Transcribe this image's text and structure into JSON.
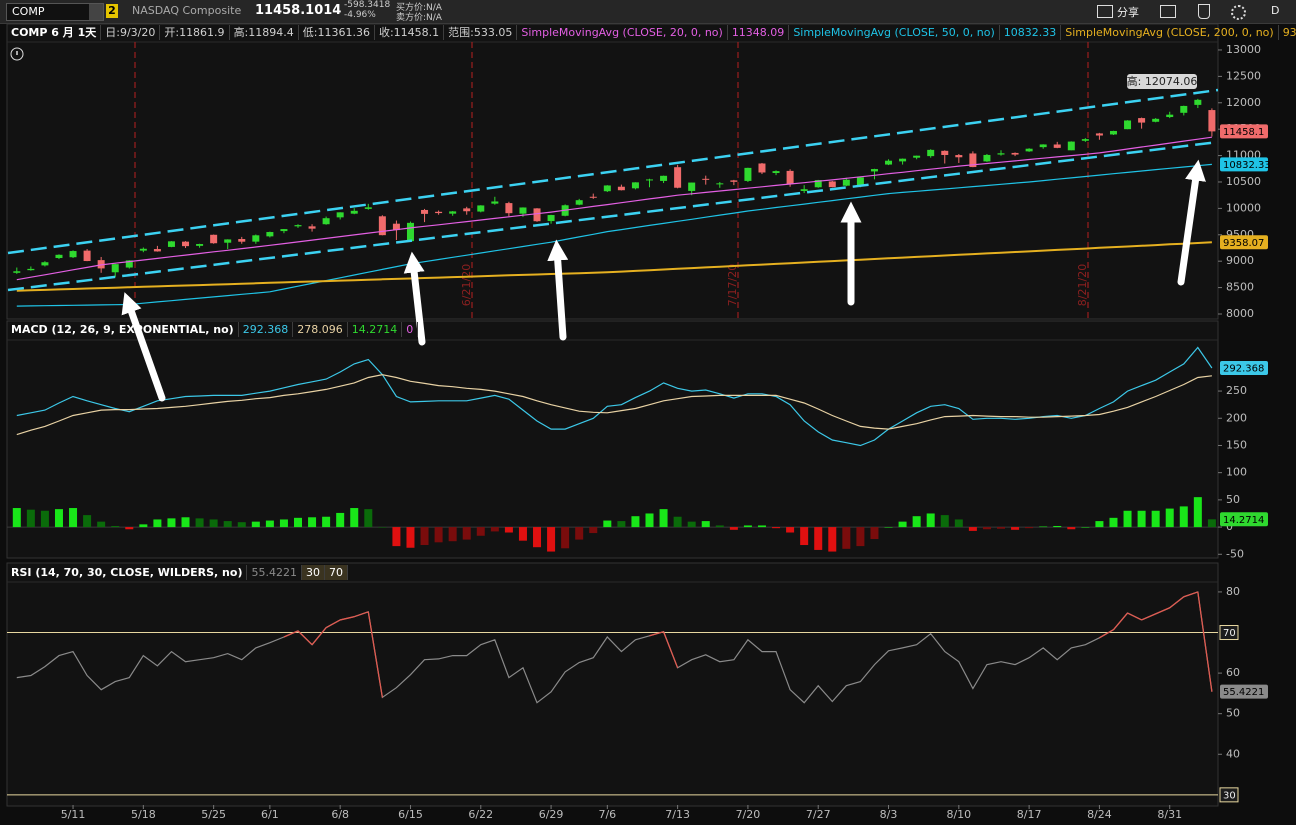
{
  "toolbar": {
    "symbol": "COMP",
    "link": "2",
    "name": "NASDAQ Composite",
    "last": "11458.1014",
    "change": "-598.3418",
    "change_pct": "-4.96%",
    "bid": "买方价:N/A",
    "ask": "卖方价:N/A",
    "share": "分享",
    "period": "D"
  },
  "chart_data": [
    {
      "type": "candlestick",
      "title": "COMP 6 月 1天",
      "info": [
        "日:9/3/20",
        "开:11861.9",
        "高:11894.4",
        "低:11361.36",
        "收:11458.1",
        "范围:533.05"
      ],
      "high_label": "高: 12074.06",
      "event_labels": [
        "6/21/20",
        "7/17/20",
        "8/21/20"
      ],
      "categories": [
        null,
        null,
        null,
        null,
        "5/11",
        null,
        null,
        null,
        null,
        "5/18",
        null,
        null,
        null,
        null,
        "5/25",
        null,
        null,
        null,
        "6/1",
        null,
        null,
        null,
        null,
        "6/8",
        null,
        null,
        null,
        null,
        "6/15",
        null,
        null,
        null,
        null,
        "6/22",
        null,
        null,
        null,
        null,
        "6/29",
        null,
        null,
        null,
        "7/6",
        null,
        null,
        null,
        null,
        "7/13",
        null,
        null,
        null,
        null,
        "7/20",
        null,
        null,
        null,
        null,
        "7/27",
        null,
        null,
        null,
        null,
        "8/3",
        null,
        null,
        null,
        null,
        "8/10",
        null,
        null,
        null,
        null,
        "8/17",
        null,
        null,
        null,
        null,
        "8/24",
        null,
        null,
        null,
        null,
        "8/31",
        null,
        null,
        null
      ],
      "open": [
        8780,
        8830,
        8920,
        9060,
        9075,
        9200,
        9020,
        8790,
        8880,
        9200,
        9230,
        9270,
        9370,
        9290,
        9500,
        9350,
        9420,
        9370,
        9470,
        9570,
        9660,
        9660,
        9700,
        9830,
        9900,
        9990,
        9850,
        9710,
        9380,
        9970,
        9935,
        9900,
        10000,
        9940,
        10090,
        10100,
        9900,
        10000,
        9760,
        9860,
        10070,
        10220,
        10325,
        10410,
        10380,
        10540,
        10520,
        10780,
        10330,
        10560,
        10470,
        10530,
        10520,
        10850,
        10670,
        10710,
        10330,
        10400,
        10510,
        10430,
        10430,
        10700,
        10830,
        10890,
        10960,
        10990,
        11090,
        11010,
        11040,
        10890,
        11020,
        11050,
        11080,
        11160,
        11210,
        11100,
        11280,
        11420,
        11400,
        11500,
        11710,
        11640,
        11730,
        11810,
        11960,
        11861.9
      ],
      "high": [
        8880,
        8900,
        9000,
        9130,
        9205,
        9230,
        9080,
        8950,
        9020,
        9260,
        9290,
        9380,
        9380,
        9330,
        9505,
        9415,
        9460,
        9505,
        9560,
        9610,
        9700,
        9700,
        9845,
        9927,
        10003,
        10086,
        9870,
        9770,
        9750,
        9990,
        9960,
        9950,
        10030,
        10060,
        10220,
        10125,
        10020,
        10005,
        9878,
        10075,
        10180,
        10280,
        10440,
        10450,
        10495,
        10560,
        10620,
        10825,
        10490,
        10620,
        10500,
        10540,
        10770,
        10860,
        10720,
        10740,
        10440,
        10540,
        10520,
        10580,
        10600,
        10750,
        10930,
        10945,
        11000,
        11120,
        11100,
        11030,
        11080,
        11030,
        11100,
        11060,
        11140,
        11215,
        11260,
        11270,
        11330,
        11430,
        11470,
        11670,
        11720,
        11710,
        11830,
        11945,
        12074.06,
        11894.4
      ],
      "low": [
        8760,
        8820,
        8900,
        9040,
        9060,
        9000,
        8780,
        8700,
        8860,
        9170,
        9180,
        9265,
        9250,
        9255,
        9330,
        9230,
        9330,
        9330,
        9450,
        9530,
        9630,
        9560,
        9690,
        9790,
        9890,
        9975,
        9490,
        9400,
        9370,
        9740,
        9880,
        9860,
        9880,
        9925,
        10070,
        9850,
        9840,
        9745,
        9710,
        9850,
        10060,
        10180,
        10310,
        10340,
        10360,
        10400,
        10480,
        10380,
        10250,
        10450,
        10390,
        10440,
        10500,
        10650,
        10630,
        10410,
        10290,
        10390,
        10400,
        10420,
        10400,
        10550,
        10820,
        10830,
        10930,
        10960,
        10850,
        10860,
        10780,
        10880,
        11000,
        10990,
        11070,
        11130,
        11140,
        11100,
        11260,
        11300,
        11390,
        11500,
        11510,
        11630,
        11710,
        11760,
        11900,
        11361.36
      ],
      "close": [
        8809,
        8854,
        8980,
        9121,
        9192,
        9003,
        8863,
        8944,
        9015,
        9235,
        9185,
        9376,
        9285,
        9325,
        9340,
        9412,
        9369,
        9490,
        9552,
        9608,
        9683,
        9616,
        9814,
        9925,
        9954,
        10020,
        9493,
        9589,
        9726,
        9896,
        9911,
        9943,
        9946,
        10056,
        10131,
        9909,
        10017,
        9757,
        9874,
        10059,
        10155,
        10208,
        10434,
        10344,
        10493,
        10548,
        10617,
        10391,
        10489,
        10550,
        10474,
        10503,
        10767,
        10680,
        10706,
        10461,
        10363,
        10536,
        10402,
        10543,
        10588,
        10745,
        10903,
        10941,
        10998,
        11108,
        11011,
        10968,
        10783,
        11012,
        11043,
        11019,
        11130,
        11211,
        11146,
        11265,
        11312,
        11380,
        11466,
        11665,
        11625,
        11696,
        11775,
        11940,
        12056,
        11458.1
      ],
      "up_color": "#2fd92f",
      "down_color": "#f06b6b",
      "close_tag": true,
      "series": [
        {
          "name": "SimpleMovingAvg (CLOSE, 20, 0, no)",
          "color": "#e35fe3",
          "tag": false,
          "values": [
            8650,
            8697,
            8743,
            8790,
            8837,
            8883,
            8930,
            8961,
            8992,
            9023,
            9053,
            9084,
            9115,
            9146,
            9177,
            9207,
            9238,
            9269,
            9300,
            9333,
            9366,
            9399,
            9432,
            9465,
            9498,
            9531,
            9564,
            9597,
            9630,
            9660,
            9690,
            9720,
            9750,
            9780,
            9810,
            9840,
            9870,
            9900,
            9930,
            9966,
            10001,
            10037,
            10072,
            10108,
            10143,
            10179,
            10214,
            10250,
            10276,
            10303,
            10329,
            10356,
            10382,
            10408,
            10435,
            10461,
            10487,
            10514,
            10540,
            10569,
            10598,
            10627,
            10656,
            10684,
            10713,
            10742,
            10771,
            10800,
            10825,
            10850,
            10875,
            10900,
            10925,
            10950,
            10975,
            11000,
            11025,
            11050,
            11087,
            11125,
            11162,
            11199,
            11236,
            11274,
            11311,
            11348.09
          ]
        },
        {
          "name": "SimpleMovingAvg (CLOSE, 50, 0, no)",
          "color": "#1fc3e6",
          "tag": true,
          "values": [
            8150,
            8153,
            8157,
            8160,
            8164,
            8168,
            8172,
            8176,
            8180,
            8204,
            8228,
            8252,
            8276,
            8300,
            8324,
            8348,
            8372,
            8396,
            8420,
            8473,
            8526,
            8579,
            8632,
            8685,
            8738,
            8791,
            8844,
            8897,
            8950,
            8991,
            9032,
            9073,
            9114,
            9155,
            9196,
            9237,
            9278,
            9319,
            9360,
            9410,
            9460,
            9510,
            9560,
            9599,
            9638,
            9677,
            9716,
            9755,
            9794,
            9833,
            9872,
            9911,
            9950,
            9983,
            10016,
            10049,
            10082,
            10115,
            10148,
            10181,
            10214,
            10247,
            10280,
            10302,
            10324,
            10346,
            10368,
            10390,
            10412,
            10434,
            10456,
            10478,
            10500,
            10526,
            10552,
            10578,
            10604,
            10630,
            10656,
            10682,
            10708,
            10734,
            10760,
            10784,
            10808,
            10832.33
          ]
        },
        {
          "name": "SimpleMovingAvg (CLOSE, 200, 0, no)",
          "color": "#e5b020",
          "tag": true,
          "values": [
            8440,
            8448,
            8457,
            8465,
            8473,
            8482,
            8490,
            8498,
            8507,
            8515,
            8523,
            8532,
            8540,
            8548,
            8557,
            8565,
            8573,
            8582,
            8590,
            8598,
            8607,
            8615,
            8623,
            8632,
            8640,
            8648,
            8657,
            8665,
            8673,
            8682,
            8690,
            8698,
            8707,
            8715,
            8723,
            8732,
            8740,
            8748,
            8757,
            8765,
            8773,
            8782,
            8790,
            8803,
            8816,
            8830,
            8843,
            8856,
            8869,
            8882,
            8896,
            8909,
            8922,
            8935,
            8949,
            8962,
            8975,
            8988,
            9001,
            9015,
            9028,
            9041,
            9054,
            9067,
            9081,
            9094,
            9107,
            9120,
            9134,
            9147,
            9160,
            9173,
            9186,
            9200,
            9213,
            9226,
            9239,
            9253,
            9266,
            9279,
            9292,
            9305,
            9319,
            9332,
            9345,
            9358.07
          ]
        }
      ],
      "ylim": [
        7924,
        13151
      ],
      "yticks": [
        8000,
        8500,
        9000,
        9500,
        10000,
        10500,
        11000,
        11500,
        12000,
        12500,
        13000
      ]
    },
    {
      "type": "line",
      "title": "MACD (12, 26, 9, EXPONENTIAL, no)",
      "zero_line": 0,
      "series": [
        {
          "color": "#3cc8e8",
          "tag": true,
          "values": [
            205,
            210,
            215,
            228,
            240,
            232,
            225,
            218,
            212,
            222,
            232,
            236,
            240,
            241,
            242,
            242,
            242,
            246,
            250,
            256,
            262,
            267,
            272,
            285,
            300,
            308,
            280,
            240,
            230,
            231,
            232,
            232,
            232,
            237,
            242,
            235,
            215,
            195,
            180,
            180,
            190,
            200,
            222,
            225,
            238,
            250,
            265,
            255,
            250,
            252,
            245,
            237,
            245,
            245,
            240,
            225,
            195,
            175,
            160,
            155,
            150,
            160,
            180,
            195,
            210,
            222,
            225,
            218,
            198,
            200,
            200,
            198,
            200,
            203,
            205,
            200,
            205,
            218,
            230,
            250,
            260,
            270,
            285,
            300,
            330,
            292.368
          ]
        },
        {
          "color": "#e8d2a4",
          "tag": false,
          "values": [
            170,
            178,
            185,
            195,
            205,
            210,
            215,
            216,
            216,
            217,
            218,
            220,
            222,
            225,
            228,
            231,
            233,
            236,
            238,
            242,
            245,
            249,
            253,
            259,
            265,
            275,
            280,
            275,
            268,
            264,
            260,
            258,
            255,
            253,
            250,
            245,
            240,
            232,
            225,
            219,
            213,
            211,
            210,
            214,
            218,
            225,
            232,
            236,
            240,
            241,
            242,
            242,
            242,
            242,
            242,
            235,
            228,
            217,
            205,
            195,
            185,
            182,
            180,
            185,
            190,
            197,
            203,
            204,
            205,
            204,
            203,
            203,
            202,
            202,
            203,
            204,
            205,
            207,
            213,
            220,
            230,
            240,
            251,
            262,
            275,
            278.096
          ]
        },
        {
          "type": "bar",
          "color": "#2fd92f",
          "tag": true,
          "colors": {
            "up_rising": "#19e619",
            "up_falling": "#0a6b0a",
            "down_falling": "#e01010",
            "down_rising": "#7a0c0c"
          },
          "values": [
            35,
            32,
            30,
            33,
            35,
            22,
            10,
            2,
            -4,
            5,
            14,
            16,
            18,
            16,
            14,
            11,
            9,
            10,
            12,
            14,
            17,
            18,
            19,
            26,
            35,
            33,
            0,
            -35,
            -38,
            -33,
            -28,
            -26,
            -23,
            -16,
            -8,
            -10,
            -25,
            -37,
            -45,
            -39,
            -23,
            -11,
            12,
            11,
            20,
            25,
            33,
            19,
            10,
            11,
            3,
            -5,
            3,
            3,
            -2,
            -10,
            -33,
            -42,
            -45,
            -40,
            -35,
            -22,
            0,
            10,
            20,
            25,
            22,
            14,
            -7,
            -4,
            -3,
            -5,
            -2,
            1,
            2,
            -4,
            0,
            11,
            17,
            30,
            30,
            30,
            34,
            38,
            55,
            14.2714
          ]
        }
      ],
      "ylim": [
        -55,
        342
      ],
      "yticks": [
        -50,
        0,
        50,
        100,
        150,
        200,
        250
      ]
    },
    {
      "type": "line",
      "title": "RSI (14, 70, 30, CLOSE, WILDERS, no)",
      "levels": [
        30,
        70
      ],
      "level_color": "#e8d8a0",
      "overbought_color": "#e05a50",
      "series": [
        {
          "color": "#8a8a8a",
          "tag": true,
          "values": [
            58.9,
            59.4,
            61.6,
            64.3,
            65.3,
            59.4,
            55.9,
            57.9,
            58.9,
            64.3,
            61.8,
            65.3,
            62.8,
            63.3,
            63.8,
            64.8,
            63.3,
            66.2,
            67.5,
            68.9,
            70.4,
            67.0,
            71.2,
            73.1,
            73.9,
            75.1,
            54.0,
            56.4,
            59.6,
            63.3,
            63.5,
            64.3,
            64.3,
            67.0,
            68.2,
            58.9,
            61.3,
            52.7,
            55.4,
            60.3,
            62.6,
            63.8,
            68.9,
            65.3,
            68.2,
            69.2,
            70.2,
            61.3,
            63.3,
            64.5,
            62.8,
            63.3,
            68.2,
            65.3,
            65.3,
            55.9,
            52.7,
            56.9,
            53.0,
            56.9,
            57.9,
            62.1,
            65.5,
            66.2,
            67.0,
            69.7,
            65.3,
            62.8,
            56.2,
            62.1,
            62.8,
            62.1,
            63.8,
            66.2,
            63.3,
            66.2,
            67.0,
            68.7,
            70.7,
            74.8,
            73.1,
            74.6,
            76.1,
            78.8,
            80.0,
            55.4221
          ]
        }
      ],
      "ylim": [
        27.5,
        82.2
      ],
      "yticks": [
        40,
        50,
        60,
        80
      ]
    }
  ]
}
